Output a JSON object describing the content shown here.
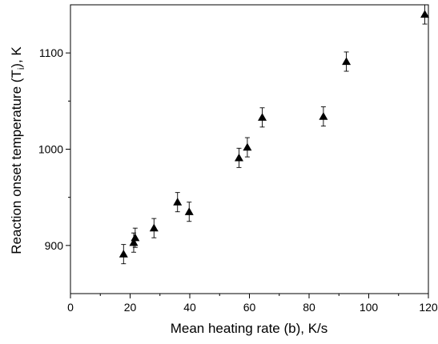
{
  "chart_data": {
    "type": "scatter",
    "title": "",
    "xlabel": "Mean heating rate (b), K/s",
    "ylabel_main": "Reaction onset temperature (T",
    "ylabel_sub": "i",
    "ylabel_tail": "), K",
    "xlim": [
      0,
      120
    ],
    "ylim": [
      850,
      1150
    ],
    "x_ticks": [
      0,
      20,
      40,
      60,
      80,
      100,
      120
    ],
    "y_ticks": [
      900,
      1000,
      1100
    ],
    "grid": false,
    "marker": "filled-triangle",
    "color": "#000000",
    "points": [
      {
        "x": 17.8,
        "y": 891,
        "err": 10
      },
      {
        "x": 21.2,
        "y": 903,
        "err": 10
      },
      {
        "x": 21.7,
        "y": 908,
        "err": 10
      },
      {
        "x": 28.0,
        "y": 918,
        "err": 10
      },
      {
        "x": 35.9,
        "y": 945,
        "err": 10
      },
      {
        "x": 39.8,
        "y": 935,
        "err": 10
      },
      {
        "x": 56.5,
        "y": 991,
        "err": 10
      },
      {
        "x": 59.3,
        "y": 1002,
        "err": 10
      },
      {
        "x": 64.3,
        "y": 1033,
        "err": 10
      },
      {
        "x": 84.8,
        "y": 1034,
        "err": 10
      },
      {
        "x": 92.5,
        "y": 1091,
        "err": 10
      },
      {
        "x": 118.8,
        "y": 1140,
        "err": 10
      }
    ]
  }
}
